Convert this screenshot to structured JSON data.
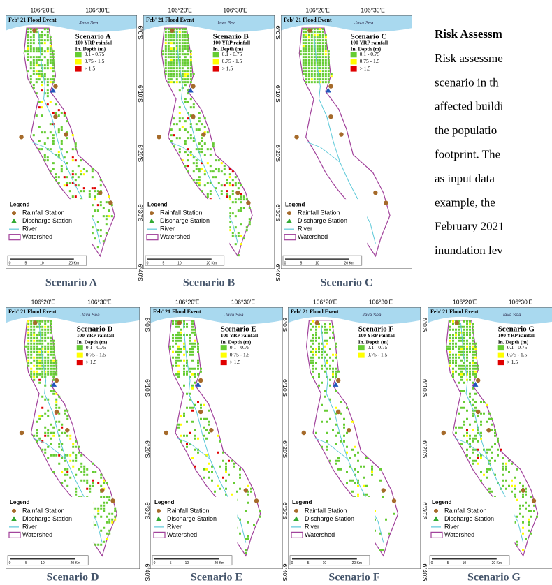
{
  "panels": [
    {
      "caption": "Scenario A",
      "lon_labels": [
        "106°20'E",
        "106°30'E"
      ],
      "title": "Feb' 21 Flood Event",
      "sea": "Java Sea",
      "scenario": "Scenario A",
      "rainfall": "100 YRP rainfall",
      "depth_title": "In. Depth (m)",
      "depth_classes": [
        {
          "label": "0.1 - 0.75",
          "color": "#66cc33"
        },
        {
          "label": "0.75 - 1.5",
          "color": "#ffff00"
        },
        {
          "label": "> 1.5",
          "color": "#e00000"
        }
      ],
      "legend": {
        "title": "Legend",
        "items": [
          "Rainfall Station",
          "Discharge Station",
          "River",
          "Watershed"
        ]
      },
      "scale": [
        "0",
        "5",
        "10",
        "20 Km"
      ]
    },
    {
      "caption": "Scenario B",
      "lon_labels": [
        "106°20'E",
        "106°30'E"
      ],
      "lat_labels": [
        "6°0'S",
        "6°10'S",
        "6°20'S",
        "6°30'S",
        "6°40'S"
      ],
      "title": "Feb' 21 Flood Event",
      "sea": "Java Sea",
      "scenario": "Scenario B",
      "rainfall": "100 YRP rainfall",
      "depth_title": "In. Depth (m)",
      "depth_classes": [
        {
          "label": "0.1 - 0.75",
          "color": "#66cc33"
        },
        {
          "label": "0.75 - 1.5",
          "color": "#ffff00"
        },
        {
          "label": "> 1.5",
          "color": "#e00000"
        }
      ],
      "legend": {
        "title": "Legend",
        "items": [
          "Rainfall Station",
          "Discharge Station",
          "River",
          "Watershed"
        ]
      },
      "scale": [
        "0",
        "5",
        "10",
        "20 Km"
      ]
    },
    {
      "caption": "Scenario C",
      "lon_labels": [
        "106°20'E",
        "106°30'E"
      ],
      "lat_labels": [
        "6°0'S",
        "6°10'S",
        "6°20'S",
        "6°30'S",
        "6°40'S"
      ],
      "title": "Feb' 21 Flood Event",
      "sea": "Java Sea",
      "scenario": "Scenario C",
      "rainfall": "100 YRP rainfall",
      "depth_title": "In. Depth (m)",
      "depth_classes": [
        {
          "label": "0.1 - 0.75",
          "color": "#66cc33"
        },
        {
          "label": "0.75 - 1.5",
          "color": "#ffff00"
        },
        {
          "label": "> 1.5",
          "color": "#e00000"
        }
      ],
      "legend": {
        "title": "Legend",
        "items": [
          "Rainfall Station",
          "Discharge Station",
          "River",
          "Watershed"
        ]
      },
      "scale": [
        "0",
        "5",
        "10",
        "20 Km"
      ]
    },
    {
      "caption": "Scenario D",
      "lon_labels": [
        "106°20'E",
        "106°30'E"
      ],
      "title": "Feb' 21 Flood Event",
      "sea": "Java Sea",
      "scenario": "Scenario D",
      "rainfall": "100 YRP rainfall",
      "depth_title": "In. Depth (m)",
      "depth_classes": [
        {
          "label": "0.1 - 0.75",
          "color": "#66cc33"
        },
        {
          "label": "0.75 - 1.5",
          "color": "#ffff00"
        },
        {
          "label": "> 1.5",
          "color": "#e00000"
        }
      ],
      "legend": {
        "title": "Legend",
        "items": [
          "Rainfall Station",
          "Discharge Station",
          "River",
          "Watershed"
        ]
      },
      "scale": [
        "0",
        "5",
        "10",
        "20 Km"
      ]
    },
    {
      "caption": "Scenario E",
      "lon_labels": [
        "106°20'E",
        "106°30'E"
      ],
      "lat_labels": [
        "6°0'S",
        "6°10'S",
        "6°20'S",
        "6°30'S",
        "6°40'S"
      ],
      "title": "Feb' 21 Flood Event",
      "sea": "Java Sea",
      "scenario": "Scenario E",
      "rainfall": "100 YRP rainfall",
      "depth_title": "In. Depth (m)",
      "depth_classes": [
        {
          "label": "0.1 - 0.75",
          "color": "#66cc33"
        },
        {
          "label": "0.75 - 1.5",
          "color": "#ffff00"
        },
        {
          "label": "> 1.5",
          "color": "#e00000"
        }
      ],
      "legend": {
        "title": "Legend",
        "items": [
          "Rainfall Station",
          "Discharge Station",
          "River",
          "Watershed"
        ]
      },
      "scale": [
        "0",
        "5",
        "10",
        "20 Km"
      ]
    },
    {
      "caption": "Scenario F",
      "lon_labels": [
        "106°20'E",
        "106°30'E"
      ],
      "lat_labels": [
        "6°0'S",
        "6°10'S",
        "6°20'S",
        "6°30'S",
        "6°40'S"
      ],
      "title": "Feb' 21 Flood Event",
      "sea": "Java Sea",
      "scenario": "Scenario F",
      "rainfall": "100 YRP rainfall",
      "depth_title": "In. Depth (m)",
      "depth_classes": [
        {
          "label": "0.1 - 0.75",
          "color": "#66cc33"
        },
        {
          "label": "0.75 - 1.5",
          "color": "#ffff00"
        }
      ],
      "legend": {
        "title": "Legend",
        "items": [
          "Rainfall Station",
          "Discharge Station",
          "River",
          "Watershed"
        ]
      },
      "scale": [
        "0",
        "5",
        "10",
        "20 Km"
      ]
    },
    {
      "caption": "Scenario G",
      "lon_labels": [
        "106°20'E",
        "106°30'E"
      ],
      "lat_labels": [
        "6°0'S",
        "6°10'S",
        "6°20'S",
        "6°30'S",
        "6°40'S"
      ],
      "title": "Feb' 21 Flood Event",
      "sea": "Java Sea",
      "scenario": "Scenario G",
      "rainfall": "100 YRP rainfall",
      "depth_title": "In. Depth (m)",
      "depth_classes": [
        {
          "label": "0.1 - 0.75",
          "color": "#66cc33"
        },
        {
          "label": "0.75 - 1.5",
          "color": "#ffff00"
        },
        {
          "label": "> 1.5",
          "color": "#e00000"
        }
      ],
      "legend": {
        "title": "Legend",
        "items": [
          "Rainfall Station",
          "Discharge Station",
          "River",
          "Watershed"
        ]
      },
      "scale": [
        "0",
        "5",
        "10",
        "20 Km"
      ]
    }
  ],
  "text_block": {
    "heading": "Risk Assessm",
    "lines": [
      "Risk assessme",
      "scenario in th",
      "affected buildi",
      "the populatio",
      "footprint. The",
      "as input data",
      "example, the",
      "February 2021",
      "inundation lev"
    ]
  }
}
